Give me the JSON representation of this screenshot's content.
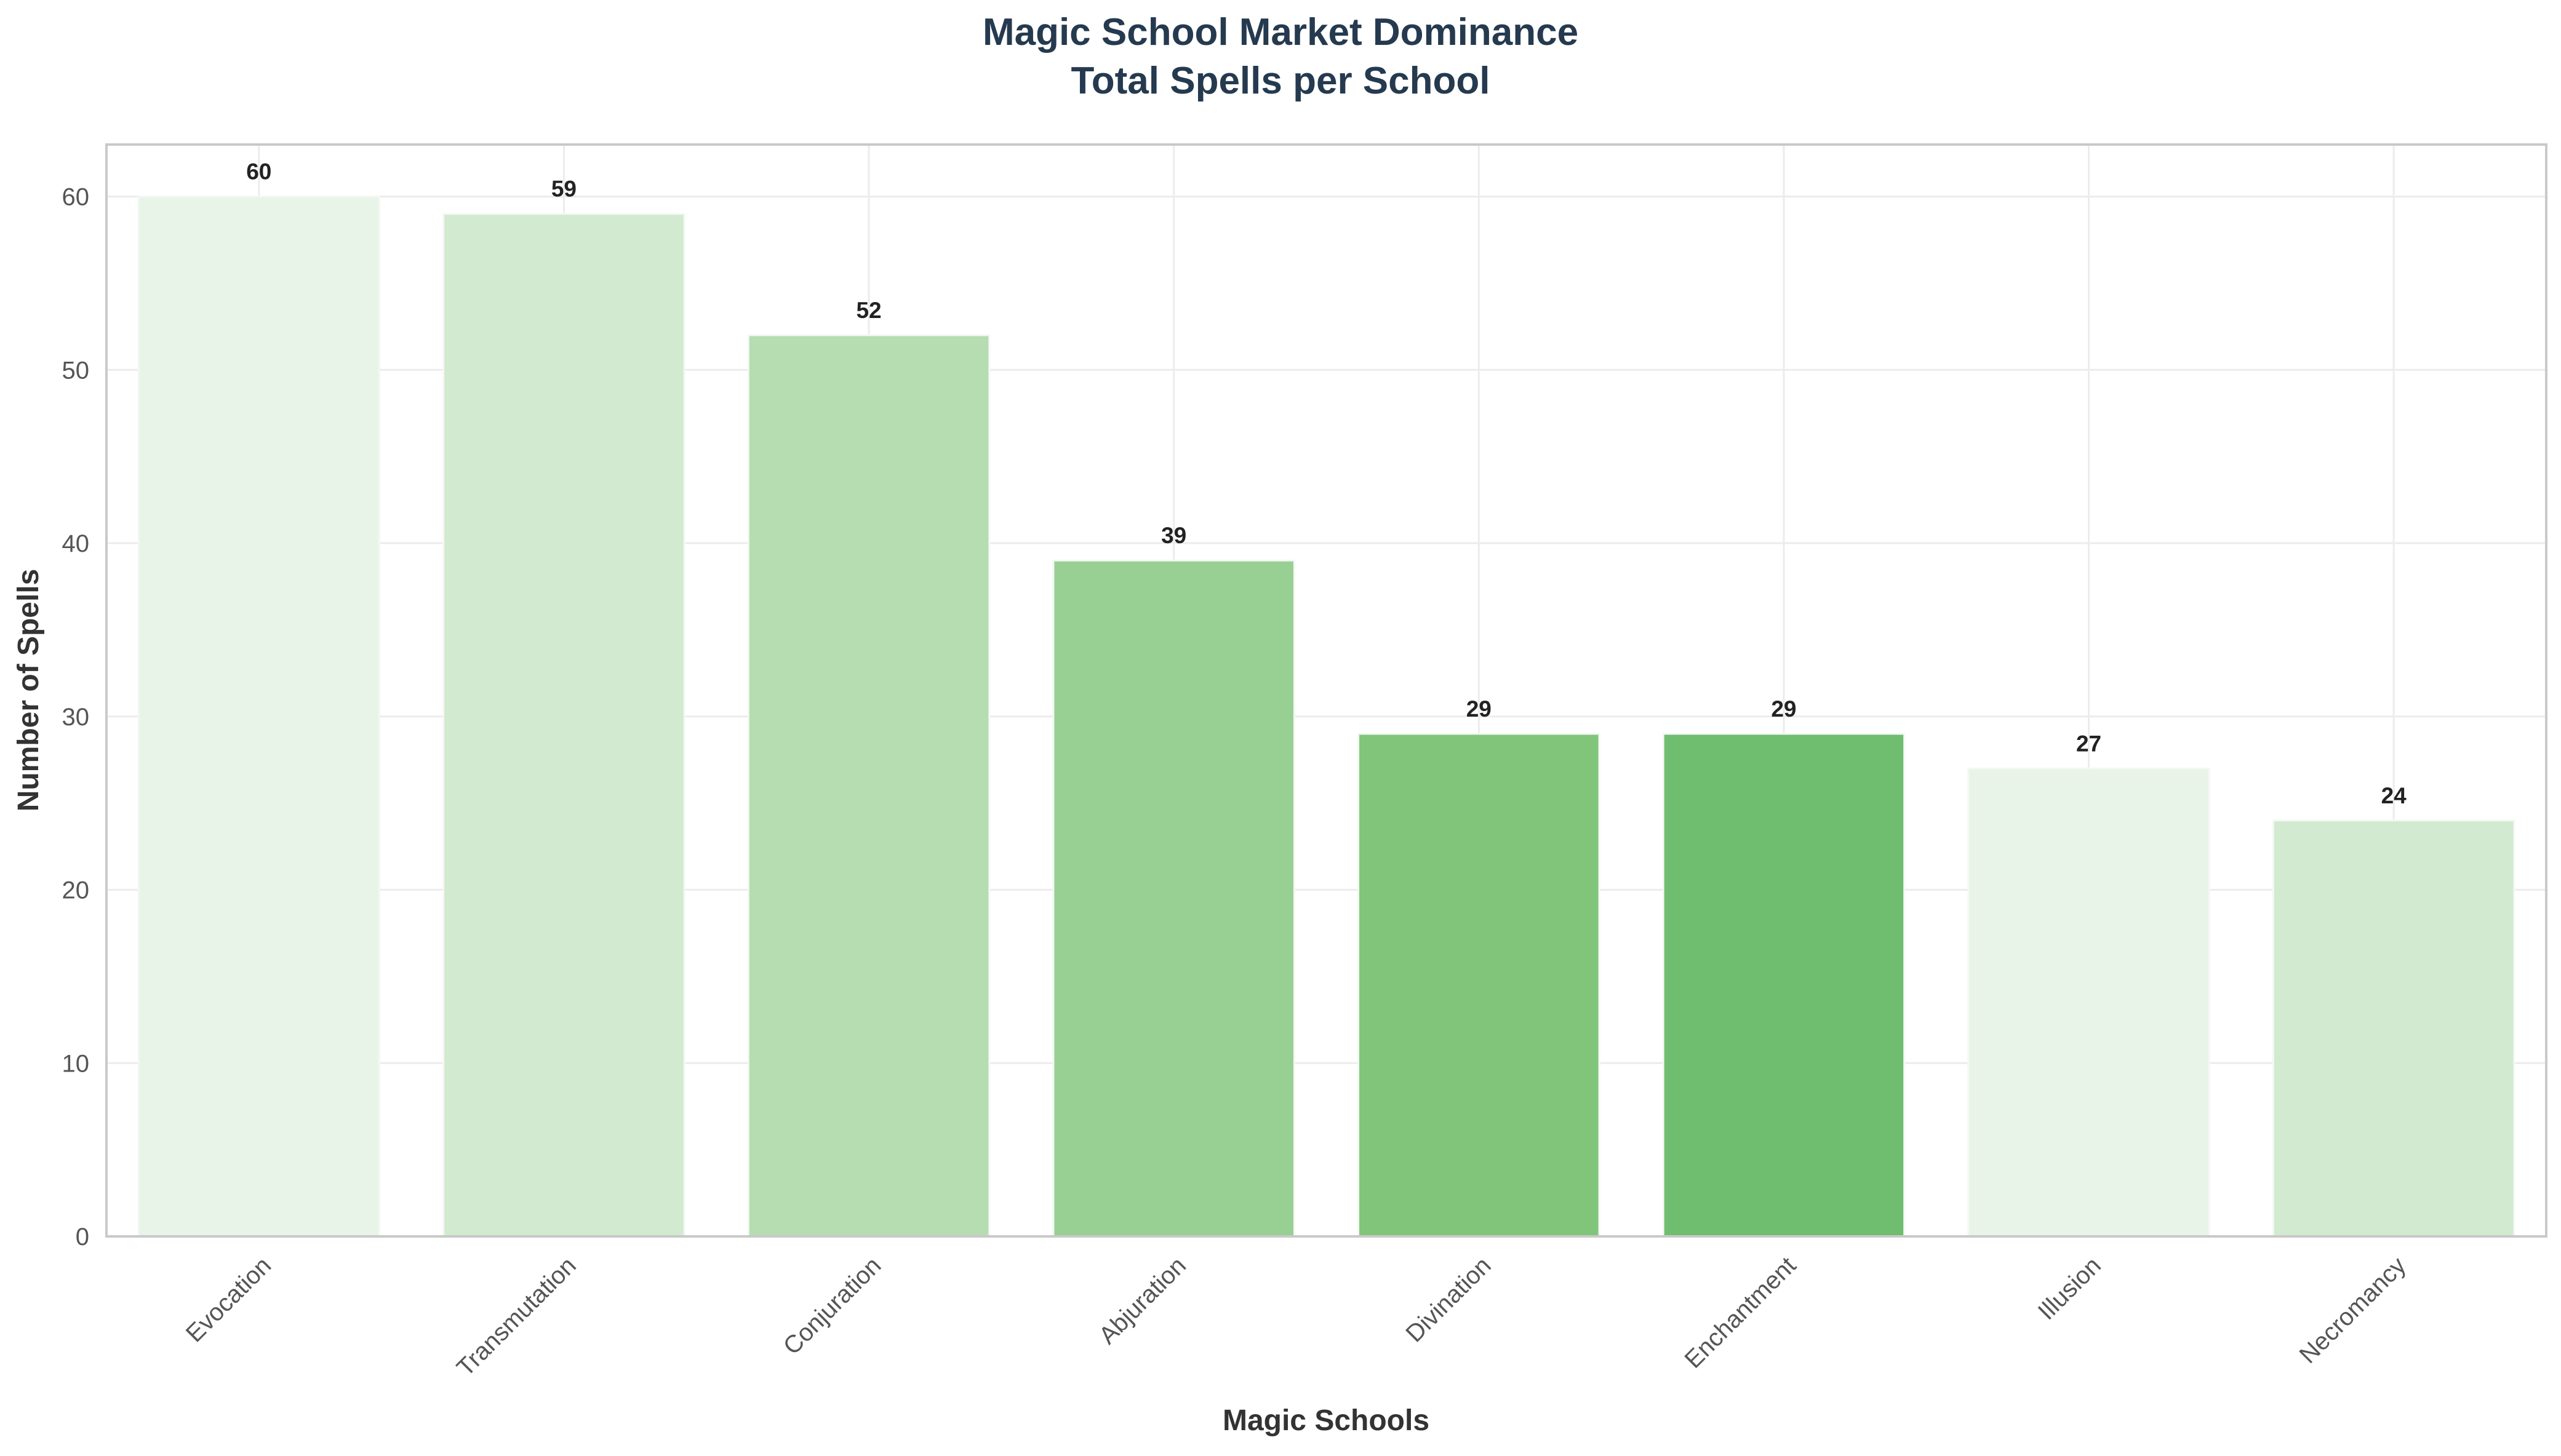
{
  "chart_data": {
    "type": "bar",
    "title": "Magic School Market Dominance",
    "subtitle": "Total Spells per School",
    "xlabel": "Magic Schools",
    "ylabel": "Number of Spells",
    "ylim": [
      0,
      63
    ],
    "yticks": [
      0,
      10,
      20,
      30,
      40,
      50,
      60
    ],
    "grid": true,
    "legend": "none",
    "categories": [
      "Evocation",
      "Transmutation",
      "Conjuration",
      "Abjuration",
      "Divination",
      "Enchantment",
      "Illusion",
      "Necromancy"
    ],
    "values": [
      60,
      59,
      52,
      39,
      29,
      29,
      27,
      24
    ],
    "data_labels": [
      "60",
      "59",
      "52",
      "39",
      "29",
      "29",
      "27",
      "24"
    ],
    "colors": [
      "#e8f4e8",
      "#d2eacf",
      "#b6dcb2",
      "#98d093",
      "#81c57b",
      "#6fbd6e",
      "#e8f4e8",
      "#d2eacf"
    ],
    "text_color": "#253a4f"
  }
}
